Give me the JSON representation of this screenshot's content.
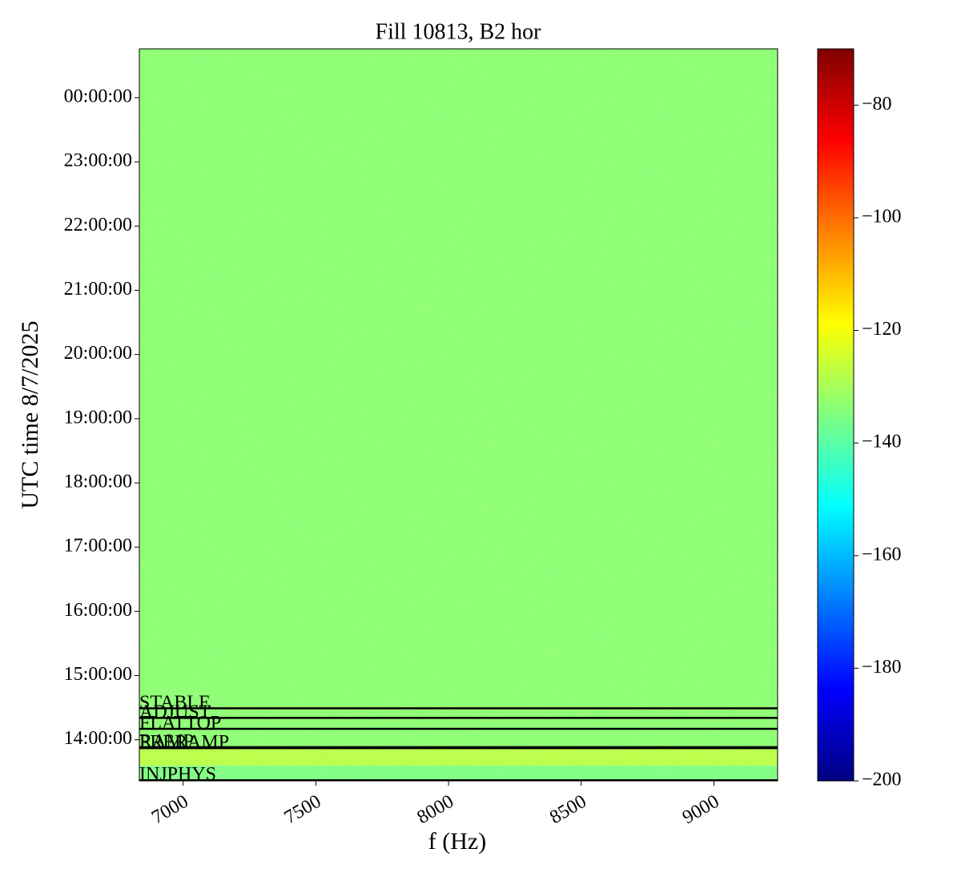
{
  "chart_data": {
    "type": "spectrogram",
    "title": "Fill 10813, B2 hor",
    "xlabel": "f (Hz)",
    "ylabel": "UTC time 8/7/2025",
    "xlim": [
      6835,
      9240
    ],
    "xticks": [
      7000,
      7500,
      8000,
      8500,
      9000
    ],
    "ylim": [
      13.36,
      24.76
    ],
    "yticks": [
      {
        "value": 14,
        "label": "14:00:00"
      },
      {
        "value": 15,
        "label": "15:00:00"
      },
      {
        "value": 16,
        "label": "16:00:00"
      },
      {
        "value": 17,
        "label": "17:00:00"
      },
      {
        "value": 18,
        "label": "18:00:00"
      },
      {
        "value": 19,
        "label": "19:00:00"
      },
      {
        "value": 20,
        "label": "20:00:00"
      },
      {
        "value": 21,
        "label": "21:00:00"
      },
      {
        "value": 22,
        "label": "22:00:00"
      },
      {
        "value": 23,
        "label": "23:00:00"
      },
      {
        "value": 24,
        "label": "00:00:00"
      }
    ],
    "colorbar": {
      "colormap": "jet",
      "clim": [
        -200,
        -70
      ],
      "ticks": [
        {
          "value": -200,
          "label": "−200"
        },
        {
          "value": -180,
          "label": "−180"
        },
        {
          "value": -160,
          "label": "−160"
        },
        {
          "value": -140,
          "label": "−140"
        },
        {
          "value": -120,
          "label": "−120"
        },
        {
          "value": -100,
          "label": "−100"
        },
        {
          "value": -80,
          "label": "−80"
        }
      ]
    },
    "levels": [
      {
        "from": 13.36,
        "to": 13.6,
        "value": -136
      },
      {
        "from": 13.6,
        "to": 13.87,
        "value": -128
      },
      {
        "from": 13.87,
        "to": 24.76,
        "value": -134
      }
    ],
    "events": [
      {
        "name": "STABLE",
        "time": 14.49
      },
      {
        "name": "ADJUST",
        "time": 14.34
      },
      {
        "name": "FLATTOP",
        "time": 14.17
      },
      {
        "name": "RAMP",
        "time": 13.885
      },
      {
        "name": "PRERAMP",
        "time": 13.87
      },
      {
        "name": "INJPHYS",
        "time": 13.37
      }
    ]
  }
}
